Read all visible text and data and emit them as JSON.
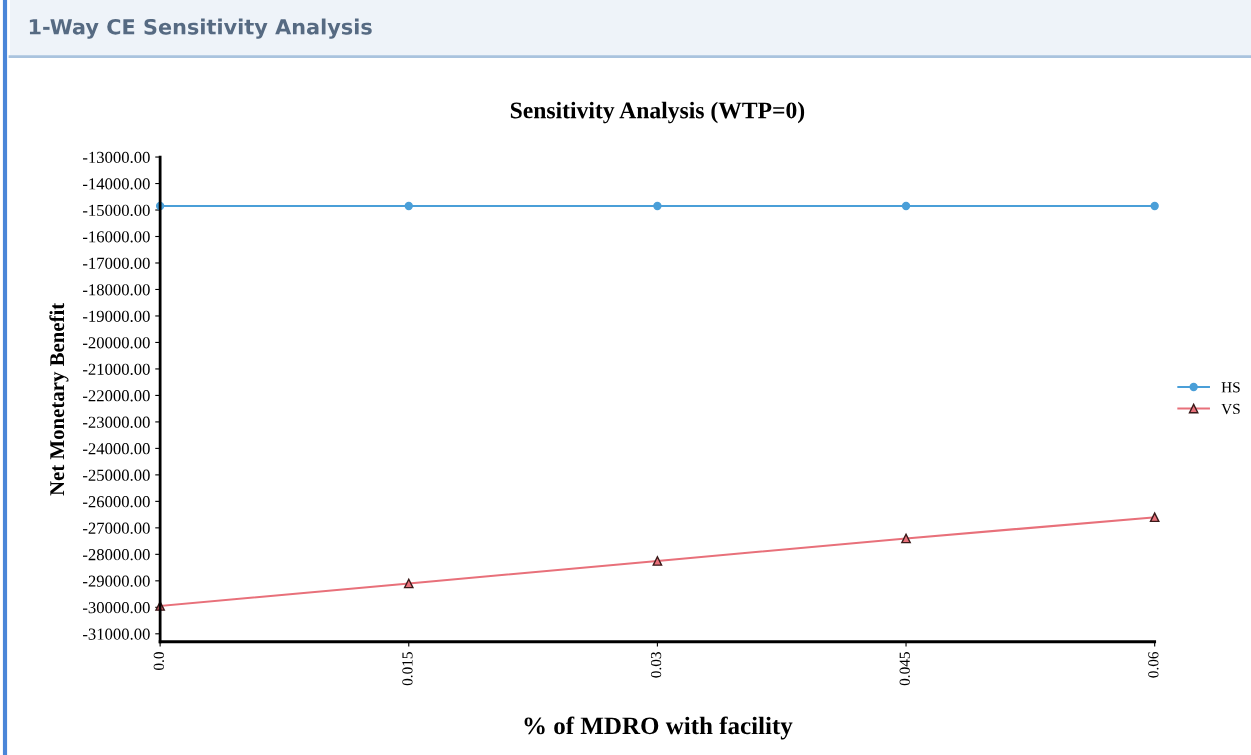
{
  "chart_data": {
    "type": "line",
    "title": "Sensitivity Analysis (WTP=0)",
    "xlabel": "% of MDRO with facility",
    "ylabel": "Net Monetary Benefit",
    "annotations": [
      "1-Way CE Sensitivity Analysis"
    ],
    "x": [
      0.0,
      0.015,
      0.03,
      0.045,
      0.06
    ],
    "series": [
      {
        "name": "HS",
        "color": "#4a9fd8",
        "marker": "circle",
        "values": [
          -14850,
          -14850,
          -14850,
          -14850,
          -14850
        ]
      },
      {
        "name": "VS",
        "color": "#e8707a",
        "marker": "triangle",
        "values": [
          -29950,
          -29100,
          -28250,
          -27400,
          -26600
        ]
      }
    ],
    "xlim": [
      0.0,
      0.06
    ],
    "xticks": [
      {
        "value": 0.0,
        "label": "0.0"
      },
      0.015,
      0.03,
      0.045,
      0.06
    ],
    "ylim": [
      -31300,
      -13000
    ],
    "yticks": [
      {
        "value": -31000,
        "label": "-31000.00"
      },
      {
        "value": -30000,
        "label": "-30000.00"
      },
      {
        "value": -29000,
        "label": "-29000.00"
      },
      {
        "value": -28000,
        "label": "-28000.00"
      },
      {
        "value": -27000,
        "label": "-27000.00"
      },
      {
        "value": -26000,
        "label": "-26000.00"
      },
      {
        "value": -25000,
        "label": "-25000.00"
      },
      {
        "value": -24000,
        "label": "-24000.00"
      },
      {
        "value": -23000,
        "label": "-23000.00"
      },
      {
        "value": -22000,
        "label": "-22000.00"
      },
      {
        "value": -21000,
        "label": "-21000.00"
      },
      {
        "value": -20000,
        "label": "-20000.00"
      },
      {
        "value": -19000,
        "label": "-19000.00"
      },
      {
        "value": -18000,
        "label": "-18000.00"
      },
      {
        "value": -17000,
        "label": "-17000.00"
      },
      {
        "value": -16000,
        "label": "-16000.00"
      },
      {
        "value": -15000,
        "label": "-15000.00"
      },
      {
        "value": -14000,
        "label": "-14000.00"
      },
      {
        "value": -13000,
        "label": "-13000.00"
      }
    ],
    "grid": false,
    "legend": "right",
    "line_style": "solid"
  }
}
